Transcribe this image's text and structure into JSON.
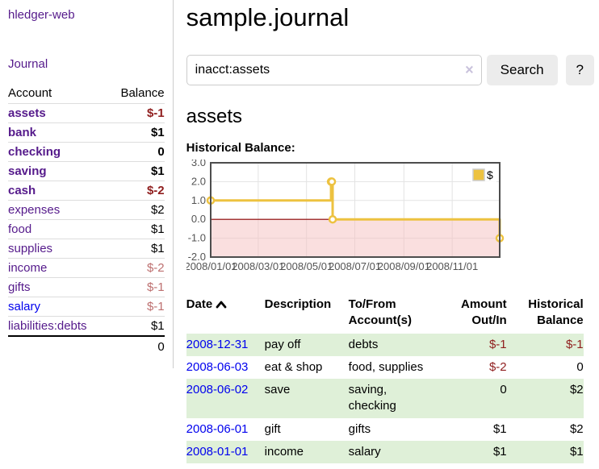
{
  "app": {
    "title": "hledger-web"
  },
  "sidebar": {
    "journal_link": "Journal",
    "accounts_table": {
      "account_header": "Account",
      "balance_header": "Balance",
      "rows": [
        {
          "name": "assets",
          "indent": 1,
          "strong": true,
          "visited": true,
          "balance": "$-1"
        },
        {
          "name": "bank",
          "indent": 2,
          "strong": true,
          "visited": true,
          "balance": "$1"
        },
        {
          "name": "checking",
          "indent": 3,
          "strong": true,
          "visited": true,
          "balance": "0"
        },
        {
          "name": "saving",
          "indent": 3,
          "strong": true,
          "visited": true,
          "balance": "$1"
        },
        {
          "name": "cash",
          "indent": 2,
          "strong": true,
          "visited": true,
          "balance": "$-2"
        },
        {
          "name": "expenses",
          "indent": 1,
          "strong": false,
          "visited": true,
          "balance": "$2"
        },
        {
          "name": "food",
          "indent": 2,
          "strong": false,
          "visited": true,
          "balance": "$1"
        },
        {
          "name": "supplies",
          "indent": 2,
          "strong": false,
          "visited": true,
          "balance": "$1"
        },
        {
          "name": "income",
          "indent": 1,
          "strong": false,
          "visited": true,
          "balance": "$-2"
        },
        {
          "name": "gifts",
          "indent": 2,
          "strong": false,
          "visited": true,
          "balance": "$-1"
        },
        {
          "name": "salary",
          "indent": 2,
          "strong": false,
          "visited": false,
          "balance": "$-1"
        },
        {
          "name": "liabilities:debts",
          "indent": 1,
          "strong": false,
          "visited": true,
          "balance": "$1"
        }
      ],
      "total": "0"
    }
  },
  "main": {
    "title": "sample.journal",
    "search": {
      "value": "inacct:assets",
      "clear_icon": "×",
      "button_label": "Search",
      "help_label": "?"
    },
    "account_heading": "assets",
    "register": {
      "headers": {
        "date": "Date",
        "description": "Description",
        "accounts": "To/From Account(s)",
        "amount": "Amount Out/In",
        "balance": "Historical Balance"
      },
      "sort": {
        "column": "Date",
        "direction": "asc"
      },
      "rows": [
        {
          "date": "2008-12-31",
          "description": "pay off",
          "accounts": [
            "debts"
          ],
          "amount": "$-1",
          "balance": "$-1"
        },
        {
          "date": "2008-06-03",
          "description": "eat & shop",
          "accounts": [
            "food, supplies"
          ],
          "amount": "$-2",
          "balance": "0"
        },
        {
          "date": "2008-06-02",
          "description": "save",
          "accounts": [
            "saving,",
            "checking"
          ],
          "amount": "0",
          "balance": "$2"
        },
        {
          "date": "2008-06-01",
          "description": "gift",
          "accounts": [
            "gifts"
          ],
          "amount": "$1",
          "balance": "$2"
        },
        {
          "date": "2008-01-01",
          "description": "income",
          "accounts": [
            "salary"
          ],
          "amount": "$1",
          "balance": "$1"
        }
      ]
    }
  },
  "chart_data": {
    "type": "line",
    "step": true,
    "title": "Historical Balance:",
    "series": [
      {
        "name": "$",
        "x": [
          "2008-01-01",
          "2008-06-01",
          "2008-06-02",
          "2008-06-03",
          "2008-12-31"
        ],
        "values": [
          1,
          2,
          2,
          0,
          -1
        ]
      }
    ],
    "xrange": [
      "2008-01-01",
      "2008-12-31"
    ],
    "ylim": [
      -2,
      3
    ],
    "yticks": [
      3.0,
      2.0,
      1.0,
      0.0,
      -1.0,
      -2.0
    ],
    "xtick_dates": [
      "2008-01-01",
      "2008-03-01",
      "2008-05-01",
      "2008-07-01",
      "2008-09-01",
      "2008-11-01"
    ],
    "xtick_labels": [
      "2008/01/01",
      "2008/03/01",
      "2008/05/01",
      "2008/07/01",
      "2008/09/01",
      "2008/11/01"
    ],
    "grid": true,
    "legend_position": "top-right",
    "line_color": "#EDC240",
    "marker_fill": "#ffffff",
    "negative_region_fill": "#f5bfbf",
    "zero_line_color": "#8b0000",
    "border_color": "#4d4d4d",
    "grid_color": "#e3e3e3",
    "tick_label_color": "#545454"
  },
  "colors": {
    "link_visited": "#551A8B",
    "link_unvisited": "#0000EE",
    "negative_strong": "#8f1d1d",
    "negative_muted": "#bd6f6f",
    "row_highlight_green": "#dff0d8",
    "button_bg": "#ececec"
  }
}
